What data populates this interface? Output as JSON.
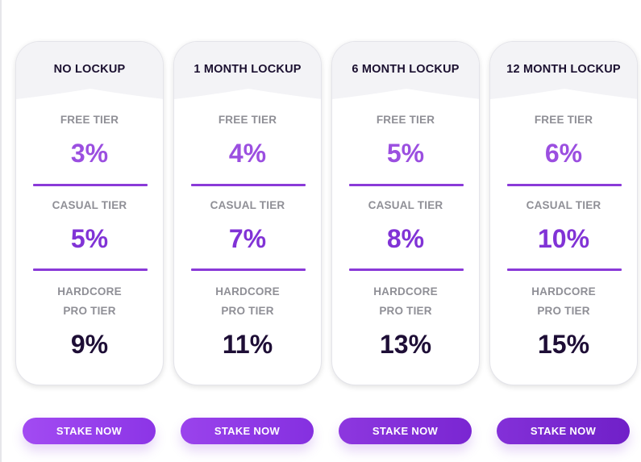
{
  "plans": [
    {
      "title": "NO LOCKUP",
      "free_label": "FREE TIER",
      "free_value": "3%",
      "casual_label": "CASUAL TIER",
      "casual_value": "5%",
      "pro_label_line1": "HARDCORE",
      "pro_label_line2": "PRO TIER",
      "pro_value": "9%",
      "button_label": "STAKE NOW"
    },
    {
      "title": "1 MONTH LOCKUP",
      "free_label": "FREE TIER",
      "free_value": "4%",
      "casual_label": "CASUAL TIER",
      "casual_value": "7%",
      "pro_label_line1": "HARDCORE",
      "pro_label_line2": "PRO TIER",
      "pro_value": "11%",
      "button_label": "STAKE NOW"
    },
    {
      "title": "6 MONTH LOCKUP",
      "free_label": "FREE TIER",
      "free_value": "5%",
      "casual_label": "CASUAL TIER",
      "casual_value": "8%",
      "pro_label_line1": "HARDCORE",
      "pro_label_line2": "PRO TIER",
      "pro_value": "13%",
      "button_label": "STAKE NOW"
    },
    {
      "title": "12 MONTH LOCKUP",
      "free_label": "FREE TIER",
      "free_value": "6%",
      "casual_label": "CASUAL TIER",
      "casual_value": "10%",
      "pro_label_line1": "HARDCORE",
      "pro_label_line2": "PRO TIER",
      "pro_value": "15%",
      "button_label": "STAKE NOW"
    }
  ],
  "colors": {
    "free_value": "#9b4fe0",
    "casual_value": "#8133d6",
    "pro_value": "#1e0e36",
    "divider": "#8a3ad8",
    "button_gradients": [
      [
        "#a24bf2",
        "#8c35e6"
      ],
      [
        "#9a43ec",
        "#8530e0"
      ],
      [
        "#8d37df",
        "#7a26d2"
      ],
      [
        "#8330d8",
        "#7020c8"
      ]
    ]
  }
}
